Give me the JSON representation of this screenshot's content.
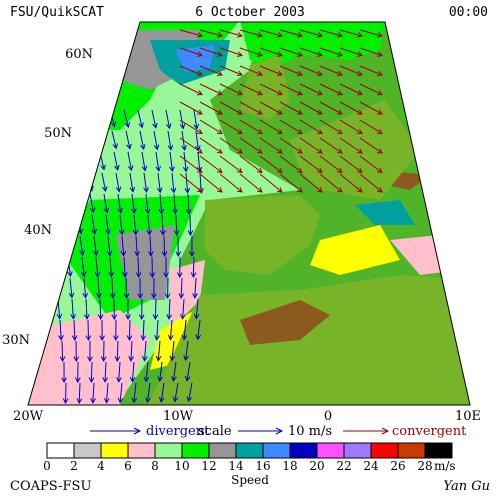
{
  "header": {
    "title": "FSU/QuikSCAT",
    "date": "6 October 2003",
    "time": "00:00"
  },
  "map": {
    "lat_labels": [
      "60N",
      "50N",
      "40N",
      "30N"
    ],
    "lon_labels": [
      "20W",
      "10W",
      "0",
      "10E"
    ]
  },
  "key": {
    "divergent": "divergent",
    "scale": "scale",
    "scale_value": "10 m/s",
    "convergent": "convergent"
  },
  "colorbar": {
    "labels": [
      0,
      2,
      4,
      6,
      8,
      10,
      12,
      14,
      16,
      18,
      20,
      22,
      24,
      26,
      28
    ],
    "colors": [
      "#ffffff",
      "#c8c8c8",
      "#ffff00",
      "#ffc0cb",
      "#98f898",
      "#00f000",
      "#969696",
      "#00a0a0",
      "#3c8cff",
      "#0000c0",
      "#ff50ff",
      "#a078ff",
      "#ff0000",
      "#c83c00",
      "#000000"
    ],
    "unit": "m/s",
    "title": "Speed"
  },
  "footer": {
    "source": "COAPS-FSU",
    "author": "Yan Gu"
  }
}
